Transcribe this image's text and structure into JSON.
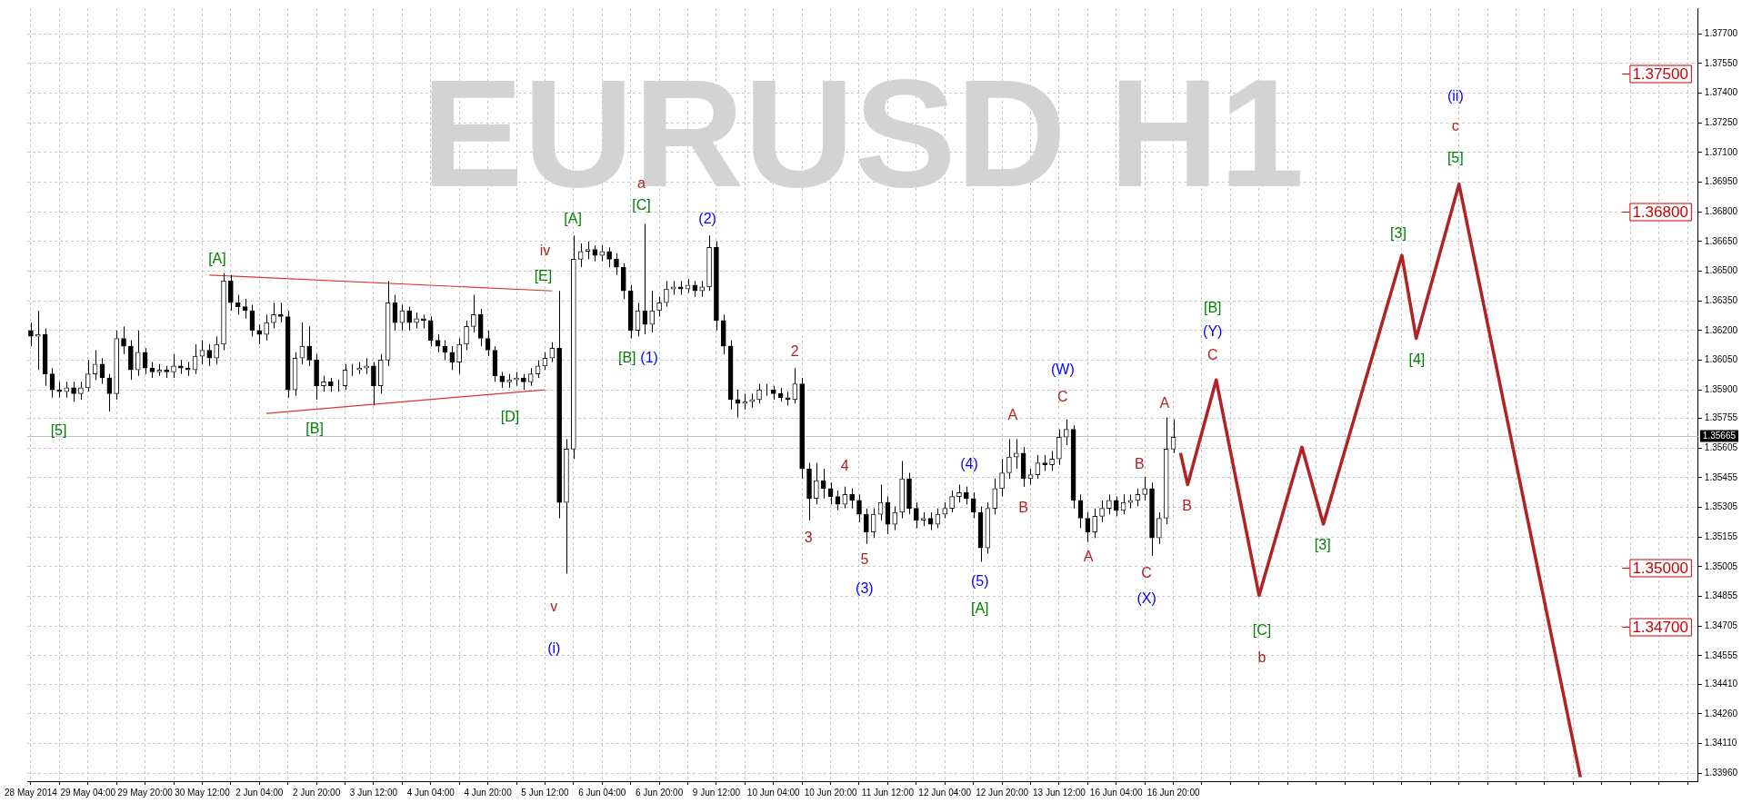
{
  "chart_data": {
    "type": "candlestick",
    "title": "EURUSD H1",
    "categories": [
      "28 May 2014",
      null,
      null,
      null,
      null,
      null,
      null,
      null,
      "29 May 04:00",
      null,
      null,
      null,
      null,
      null,
      null,
      null,
      "29 May 20:00",
      null,
      null,
      null,
      null,
      null,
      null,
      null,
      "30 May 12:00",
      null,
      null,
      null,
      null,
      null,
      null,
      null,
      "2 Jun 04:00",
      null,
      null,
      null,
      null,
      null,
      null,
      null,
      "2 Jun 20:00",
      null,
      null,
      null,
      null,
      null,
      null,
      null,
      "3 Jun 12:00",
      null,
      null,
      null,
      null,
      null,
      null,
      null,
      "4 Jun 04:00",
      null,
      null,
      null,
      null,
      null,
      null,
      null,
      "4 Jun 20:00",
      null,
      null,
      null,
      null,
      null,
      null,
      null,
      "5 Jun 12:00",
      null,
      null,
      null,
      null,
      null,
      null,
      null,
      "6 Jun 04:00",
      null,
      null,
      null,
      null,
      null,
      null,
      null,
      "6 Jun 20:00",
      null,
      null,
      null,
      null,
      null,
      null,
      null,
      "9 Jun 12:00",
      null,
      null,
      null,
      null,
      null,
      null,
      null,
      "10 Jun 04:00",
      null,
      null,
      null,
      null,
      null,
      null,
      null,
      "10 Jun 20:00",
      null,
      null,
      null,
      null,
      null,
      null,
      null,
      "11 Jun 12:00",
      null,
      null,
      null,
      null,
      null,
      null,
      null,
      "12 Jun 04:00",
      null,
      null,
      null,
      null,
      null,
      null,
      null,
      "12 Jun 20:00",
      null,
      null,
      null,
      null,
      null,
      null,
      null,
      "13 Jun 12:00",
      null,
      null,
      null,
      null,
      null,
      null,
      null,
      "16 Jun 04:00",
      null,
      null,
      null,
      null,
      null,
      null,
      null,
      "16 Jun 20:00",
      null,
      null,
      null,
      null,
      null,
      null,
      null,
      null,
      null,
      null,
      null,
      null,
      null,
      null,
      null,
      null,
      null,
      null,
      null,
      null,
      null,
      null,
      null,
      null,
      null,
      null,
      null,
      null,
      null,
      null,
      null,
      null,
      null,
      null,
      null,
      null,
      null,
      null,
      null,
      null,
      null,
      null,
      null,
      null,
      null,
      null,
      null,
      null,
      null,
      null,
      null,
      null,
      null,
      null,
      null,
      null,
      null,
      null,
      null,
      null,
      null,
      null,
      null,
      null,
      null,
      null,
      null,
      null,
      null,
      null,
      null,
      null,
      null
    ],
    "ohlc": [
      [
        1.362,
        1.3624,
        1.3612,
        1.3617
      ],
      [
        1.3617,
        1.363,
        1.36,
        1.3618
      ],
      [
        1.3618,
        1.3621,
        1.3592,
        1.3598
      ],
      [
        1.3598,
        1.3601,
        1.3586,
        1.359
      ],
      [
        1.359,
        1.3594,
        1.3586,
        1.3589
      ],
      [
        1.3589,
        1.3594,
        1.3586,
        1.3591
      ],
      [
        1.3591,
        1.3594,
        1.3584,
        1.3588
      ],
      [
        1.3588,
        1.3594,
        1.3585,
        1.3591
      ],
      [
        1.3591,
        1.3605,
        1.3589,
        1.3598
      ],
      [
        1.3598,
        1.361,
        1.3595,
        1.3603
      ],
      [
        1.3603,
        1.3606,
        1.3593,
        1.3596
      ],
      [
        1.3596,
        1.3598,
        1.3579,
        1.3588
      ],
      [
        1.3588,
        1.362,
        1.3585,
        1.3616
      ],
      [
        1.3616,
        1.3622,
        1.3608,
        1.3612
      ],
      [
        1.3612,
        1.3615,
        1.3595,
        1.36
      ],
      [
        1.36,
        1.362,
        1.3597,
        1.3609
      ],
      [
        1.3609,
        1.3611,
        1.3598,
        1.3601
      ],
      [
        1.3601,
        1.3604,
        1.3596,
        1.3599
      ],
      [
        1.3599,
        1.3603,
        1.3597,
        1.36
      ],
      [
        1.36,
        1.3602,
        1.3596,
        1.3599
      ],
      [
        1.3599,
        1.3608,
        1.3596,
        1.3602
      ],
      [
        1.3602,
        1.3605,
        1.3598,
        1.3601
      ],
      [
        1.3601,
        1.3604,
        1.3597,
        1.36
      ],
      [
        1.36,
        1.3613,
        1.3598,
        1.3607
      ],
      [
        1.3607,
        1.3615,
        1.3603,
        1.361
      ],
      [
        1.361,
        1.3613,
        1.3602,
        1.3606
      ],
      [
        1.3606,
        1.3617,
        1.3603,
        1.3613
      ],
      [
        1.3613,
        1.3649,
        1.361,
        1.3645
      ],
      [
        1.3645,
        1.3648,
        1.363,
        1.3634
      ],
      [
        1.3634,
        1.3638,
        1.3628,
        1.3632
      ],
      [
        1.3632,
        1.3636,
        1.3626,
        1.363
      ],
      [
        1.363,
        1.3633,
        1.3617,
        1.362
      ],
      [
        1.362,
        1.3623,
        1.3613,
        1.3618
      ],
      [
        1.3618,
        1.3628,
        1.3615,
        1.3624
      ],
      [
        1.3624,
        1.3634,
        1.3621,
        1.3628
      ],
      [
        1.3628,
        1.3634,
        1.3624,
        1.3627
      ],
      [
        1.3627,
        1.363,
        1.3586,
        1.359
      ],
      [
        1.359,
        1.3609,
        1.3587,
        1.3606
      ],
      [
        1.3606,
        1.3624,
        1.3603,
        1.3612
      ],
      [
        1.3612,
        1.3622,
        1.3602,
        1.3605
      ],
      [
        1.3605,
        1.3608,
        1.3585,
        1.3592
      ],
      [
        1.3592,
        1.3597,
        1.3589,
        1.3594
      ],
      [
        1.3594,
        1.3596,
        1.3589,
        1.3592
      ],
      [
        1.3592,
        1.3595,
        1.3589,
        1.3592
      ],
      [
        1.3592,
        1.3603,
        1.359,
        1.36
      ],
      [
        1.36,
        1.3603,
        1.3597,
        1.36
      ],
      [
        1.36,
        1.3604,
        1.3598,
        1.3601
      ],
      [
        1.3601,
        1.3606,
        1.3598,
        1.3602
      ],
      [
        1.3602,
        1.3604,
        1.3582,
        1.3592
      ],
      [
        1.3592,
        1.3608,
        1.3588,
        1.3605
      ],
      [
        1.3605,
        1.3645,
        1.3602,
        1.3634
      ],
      [
        1.3634,
        1.3638,
        1.362,
        1.3624
      ],
      [
        1.3624,
        1.3633,
        1.362,
        1.363
      ],
      [
        1.363,
        1.3632,
        1.362,
        1.3624
      ],
      [
        1.3624,
        1.3629,
        1.3621,
        1.3626
      ],
      [
        1.3626,
        1.3628,
        1.3621,
        1.3625
      ],
      [
        1.3625,
        1.3627,
        1.3612,
        1.3615
      ],
      [
        1.3615,
        1.3618,
        1.3609,
        1.3612
      ],
      [
        1.3612,
        1.3615,
        1.3605,
        1.3609
      ],
      [
        1.3609,
        1.3612,
        1.36,
        1.3604
      ],
      [
        1.3604,
        1.3616,
        1.3598,
        1.3613
      ],
      [
        1.3613,
        1.3625,
        1.361,
        1.3622
      ],
      [
        1.3622,
        1.3638,
        1.3619,
        1.3628
      ],
      [
        1.3628,
        1.3631,
        1.3612,
        1.3616
      ],
      [
        1.3616,
        1.362,
        1.3607,
        1.361
      ],
      [
        1.361,
        1.3612,
        1.3594,
        1.3597
      ],
      [
        1.3597,
        1.3599,
        1.3591,
        1.3594
      ],
      [
        1.3594,
        1.3598,
        1.3591,
        1.3595
      ],
      [
        1.3595,
        1.3599,
        1.3592,
        1.3596
      ],
      [
        1.3596,
        1.3598,
        1.359,
        1.3594
      ],
      [
        1.3594,
        1.3601,
        1.3592,
        1.3598
      ],
      [
        1.3598,
        1.3605,
        1.3596,
        1.3602
      ],
      [
        1.3602,
        1.3609,
        1.36,
        1.3606
      ],
      [
        1.3606,
        1.3614,
        1.3604,
        1.3611
      ],
      [
        1.3611,
        1.364,
        1.3525,
        1.3533
      ],
      [
        1.3533,
        1.3565,
        1.3497,
        1.356
      ],
      [
        1.356,
        1.3668,
        1.3555,
        1.3656
      ],
      [
        1.3656,
        1.3664,
        1.3652,
        1.366
      ],
      [
        1.366,
        1.3665,
        1.3656,
        1.3661
      ],
      [
        1.3661,
        1.3663,
        1.3655,
        1.3658
      ],
      [
        1.3658,
        1.3663,
        1.3655,
        1.366
      ],
      [
        1.366,
        1.3662,
        1.3652,
        1.3656
      ],
      [
        1.3656,
        1.3659,
        1.3648,
        1.3652
      ],
      [
        1.3652,
        1.3654,
        1.3636,
        1.364
      ],
      [
        1.364,
        1.3643,
        1.3616,
        1.362
      ],
      [
        1.362,
        1.3634,
        1.3617,
        1.363
      ],
      [
        1.363,
        1.3674,
        1.3618,
        1.3623
      ],
      [
        1.3623,
        1.364,
        1.3619,
        1.363
      ],
      [
        1.363,
        1.3637,
        1.3627,
        1.3634
      ],
      [
        1.3634,
        1.3645,
        1.3632,
        1.3641
      ],
      [
        1.3641,
        1.3645,
        1.3638,
        1.3642
      ],
      [
        1.3642,
        1.3645,
        1.3638,
        1.3641
      ],
      [
        1.3641,
        1.3646,
        1.3639,
        1.3643
      ],
      [
        1.3643,
        1.3645,
        1.3637,
        1.364
      ],
      [
        1.364,
        1.3645,
        1.3637,
        1.3642
      ],
      [
        1.3642,
        1.3668,
        1.364,
        1.3662
      ],
      [
        1.3662,
        1.3665,
        1.362,
        1.3625
      ],
      [
        1.3625,
        1.3628,
        1.3608,
        1.3612
      ],
      [
        1.3612,
        1.3615,
        1.358,
        1.3585
      ],
      [
        1.3585,
        1.359,
        1.3576,
        1.3583
      ],
      [
        1.3583,
        1.3588,
        1.358,
        1.3584
      ],
      [
        1.3584,
        1.3588,
        1.3581,
        1.3585
      ],
      [
        1.3585,
        1.3593,
        1.3583,
        1.359
      ],
      [
        1.359,
        1.3593,
        1.3587,
        1.359
      ],
      [
        1.359,
        1.3592,
        1.3585,
        1.3588
      ],
      [
        1.3588,
        1.3591,
        1.3584,
        1.3586
      ],
      [
        1.3586,
        1.3589,
        1.3582,
        1.3585
      ],
      [
        1.3585,
        1.3601,
        1.3583,
        1.3593
      ],
      [
        1.3593,
        1.3596,
        1.3545,
        1.355
      ],
      [
        1.355,
        1.3553,
        1.3524,
        1.3535
      ],
      [
        1.3535,
        1.3553,
        1.3532,
        1.3544
      ],
      [
        1.3544,
        1.355,
        1.3535,
        1.354
      ],
      [
        1.354,
        1.3543,
        1.3532,
        1.3536
      ],
      [
        1.3536,
        1.3539,
        1.3529,
        1.3532
      ],
      [
        1.3532,
        1.3541,
        1.353,
        1.3537
      ],
      [
        1.3537,
        1.354,
        1.353,
        1.3534
      ],
      [
        1.3534,
        1.3537,
        1.3523,
        1.3527
      ],
      [
        1.3527,
        1.353,
        1.3512,
        1.3518
      ],
      [
        1.3518,
        1.353,
        1.3515,
        1.3527
      ],
      [
        1.3527,
        1.3542,
        1.3524,
        1.3533
      ],
      [
        1.3533,
        1.3536,
        1.3517,
        1.3522
      ],
      [
        1.3522,
        1.3531,
        1.3519,
        1.3528
      ],
      [
        1.3528,
        1.3554,
        1.3525,
        1.3545
      ],
      [
        1.3545,
        1.3548,
        1.3527,
        1.353
      ],
      [
        1.353,
        1.3533,
        1.352,
        1.3524
      ],
      [
        1.3524,
        1.3528,
        1.3521,
        1.3525
      ],
      [
        1.3525,
        1.3528,
        1.3519,
        1.3522
      ],
      [
        1.3522,
        1.353,
        1.352,
        1.3527
      ],
      [
        1.3527,
        1.3533,
        1.3525,
        1.353
      ],
      [
        1.353,
        1.3539,
        1.3528,
        1.3536
      ],
      [
        1.3536,
        1.3542,
        1.3533,
        1.3538
      ],
      [
        1.3538,
        1.3541,
        1.3532,
        1.3535
      ],
      [
        1.3535,
        1.3538,
        1.3525,
        1.3528
      ],
      [
        1.3528,
        1.3531,
        1.3503,
        1.351
      ],
      [
        1.351,
        1.3533,
        1.3507,
        1.353
      ],
      [
        1.353,
        1.3545,
        1.3527,
        1.354
      ],
      [
        1.354,
        1.3555,
        1.3536,
        1.3548
      ],
      [
        1.3548,
        1.3565,
        1.3545,
        1.3556
      ],
      [
        1.3556,
        1.3565,
        1.355,
        1.3558
      ],
      [
        1.3558,
        1.3561,
        1.3541,
        1.3545
      ],
      [
        1.3545,
        1.355,
        1.3542,
        1.3547
      ],
      [
        1.3547,
        1.3557,
        1.3545,
        1.3553
      ],
      [
        1.3553,
        1.3557,
        1.3549,
        1.3552
      ],
      [
        1.3552,
        1.3559,
        1.3549,
        1.3555
      ],
      [
        1.3555,
        1.357,
        1.3552,
        1.3566
      ],
      [
        1.3566,
        1.3575,
        1.3562,
        1.357
      ],
      [
        1.357,
        1.3572,
        1.353,
        1.3534
      ],
      [
        1.3534,
        1.3537,
        1.352,
        1.3525
      ],
      [
        1.3525,
        1.3528,
        1.3513,
        1.3518
      ],
      [
        1.3518,
        1.353,
        1.3515,
        1.3526
      ],
      [
        1.3526,
        1.3534,
        1.3523,
        1.353
      ],
      [
        1.353,
        1.3537,
        1.3527,
        1.3534
      ],
      [
        1.3534,
        1.3536,
        1.3526,
        1.3529
      ],
      [
        1.3529,
        1.3537,
        1.3527,
        1.3533
      ],
      [
        1.3533,
        1.3537,
        1.353,
        1.3534
      ],
      [
        1.3534,
        1.354,
        1.3531,
        1.3537
      ],
      [
        1.3537,
        1.3546,
        1.3534,
        1.354
      ],
      [
        1.354,
        1.3543,
        1.3506,
        1.3515
      ],
      [
        1.3515,
        1.3528,
        1.3512,
        1.3525
      ],
      [
        1.3525,
        1.3576,
        1.3522,
        1.356
      ],
      [
        1.356,
        1.3575,
        1.3558,
        1.3566
      ],
      null,
      null,
      null,
      null,
      null,
      null,
      null,
      null,
      null,
      null,
      null,
      null,
      null,
      null,
      null,
      null,
      null,
      null,
      null,
      null,
      null,
      null,
      null,
      null,
      null,
      null,
      null,
      null,
      null,
      null,
      null,
      null,
      null,
      null,
      null,
      null,
      null,
      null,
      null,
      null,
      null,
      null,
      null,
      null,
      null,
      null,
      null,
      null,
      null,
      null,
      null,
      null,
      null,
      null,
      null,
      null,
      null,
      null,
      null,
      null,
      null,
      null,
      null,
      null,
      null,
      null,
      null,
      null,
      null,
      null,
      null,
      null,
      null
    ],
    "series": [
      {
        "type": "line",
        "color": "#dc3232",
        "values": [
          null,
          null,
          null,
          null,
          null,
          null,
          null,
          null,
          null,
          null,
          null,
          null,
          null,
          null,
          null,
          null,
          null,
          null,
          null,
          null,
          null,
          null,
          null,
          null,
          null,
          1.3648,
          null,
          null,
          null,
          null,
          null,
          null,
          null,
          null,
          null,
          null,
          null,
          null,
          null,
          null,
          null,
          null,
          null,
          null,
          null,
          null,
          null,
          null,
          null,
          null,
          null,
          null,
          null,
          null,
          null,
          null,
          null,
          null,
          null,
          null,
          null,
          null,
          null,
          null,
          null,
          null,
          null,
          null,
          null,
          null,
          null,
          null,
          null,
          1.364,
          null,
          null,
          null,
          null,
          null,
          null,
          null,
          null,
          null,
          null,
          null,
          null,
          null,
          null,
          null,
          null,
          null,
          null,
          null,
          null,
          null,
          null,
          null,
          null,
          null,
          null,
          null,
          null,
          null,
          null,
          null,
          null,
          null,
          null,
          null,
          null,
          null,
          null,
          null,
          null,
          null,
          null,
          null,
          null,
          null,
          null,
          null,
          null,
          null,
          null,
          null,
          null,
          null,
          null,
          null,
          null,
          null,
          null,
          null,
          null,
          null,
          null,
          null,
          null,
          null,
          null,
          null,
          null,
          null,
          null,
          null,
          null,
          null,
          null,
          null,
          null,
          null,
          null,
          null,
          null,
          null,
          null,
          null,
          null,
          null,
          null,
          null,
          null,
          null,
          null,
          null,
          null,
          null,
          null,
          null,
          null,
          null,
          null,
          null,
          null,
          null,
          null,
          null,
          null,
          null,
          null,
          null,
          null,
          null,
          null,
          null,
          null,
          null,
          null,
          null,
          null,
          null,
          null,
          null,
          null,
          null,
          null,
          null,
          null,
          null,
          null,
          null,
          null,
          null,
          null,
          null,
          null,
          null,
          null,
          null,
          null,
          null,
          null,
          null,
          null,
          null,
          null,
          null,
          null,
          null,
          null,
          null,
          null,
          null,
          null,
          null,
          null,
          null,
          null,
          null,
          null,
          null,
          null,
          null,
          null
        ]
      },
      {
        "type": "line",
        "color": "#dc3232",
        "values": [
          null,
          null,
          null,
          null,
          null,
          null,
          null,
          null,
          null,
          null,
          null,
          null,
          null,
          null,
          null,
          null,
          null,
          null,
          null,
          null,
          null,
          null,
          null,
          null,
          null,
          null,
          null,
          null,
          null,
          null,
          null,
          null,
          null,
          1.3578,
          null,
          null,
          null,
          null,
          null,
          null,
          null,
          null,
          null,
          null,
          null,
          null,
          null,
          null,
          null,
          null,
          null,
          null,
          null,
          null,
          null,
          null,
          null,
          null,
          null,
          null,
          null,
          null,
          null,
          null,
          null,
          null,
          null,
          null,
          null,
          null,
          null,
          null,
          1.359,
          null,
          null,
          null,
          null,
          null,
          null,
          null,
          null,
          null,
          null,
          null,
          null,
          null,
          null,
          null,
          null,
          null,
          null,
          null,
          null,
          null,
          null,
          null,
          null,
          null,
          null,
          null,
          null,
          null,
          null,
          null,
          null,
          null,
          null,
          null,
          null,
          null,
          null,
          null,
          null,
          null,
          null,
          null,
          null,
          null,
          null,
          null,
          null,
          null,
          null,
          null,
          null,
          null,
          null,
          null,
          null,
          null,
          null,
          null,
          null,
          null,
          null,
          null,
          null,
          null,
          null,
          null,
          null,
          null,
          null,
          null,
          null,
          null,
          null,
          null,
          null,
          null,
          null,
          null,
          null,
          null,
          null,
          null,
          null,
          null,
          null,
          null,
          null,
          null,
          null,
          null,
          null,
          null,
          null,
          null,
          null,
          null,
          null,
          null,
          null,
          null,
          null,
          null,
          null,
          null,
          null,
          null,
          null,
          null,
          null,
          null,
          null,
          null,
          null,
          null,
          null,
          null,
          null,
          null,
          null,
          null,
          null,
          null,
          null,
          null,
          null,
          null,
          null,
          null,
          null,
          null,
          null,
          null,
          null,
          null,
          null,
          null,
          null,
          null,
          null,
          null,
          null,
          null,
          null,
          null,
          null,
          null,
          null,
          null,
          null,
          null,
          null,
          null,
          null,
          null,
          null,
          null,
          null,
          null,
          null,
          null
        ]
      },
      {
        "type": "line",
        "color": "#b22222",
        "values": [
          null,
          null,
          null,
          null,
          null,
          null,
          null,
          null,
          null,
          null,
          null,
          null,
          null,
          null,
          null,
          null,
          null,
          null,
          null,
          null,
          null,
          null,
          null,
          null,
          null,
          null,
          null,
          null,
          null,
          null,
          null,
          null,
          null,
          null,
          null,
          null,
          null,
          null,
          null,
          null,
          null,
          null,
          null,
          null,
          null,
          null,
          null,
          null,
          null,
          null,
          null,
          null,
          null,
          null,
          null,
          null,
          null,
          null,
          null,
          null,
          null,
          null,
          null,
          null,
          null,
          null,
          null,
          null,
          null,
          null,
          null,
          null,
          null,
          null,
          null,
          null,
          null,
          null,
          null,
          null,
          null,
          null,
          null,
          null,
          null,
          null,
          null,
          null,
          null,
          null,
          null,
          null,
          null,
          null,
          null,
          null,
          null,
          null,
          null,
          null,
          null,
          null,
          null,
          null,
          null,
          null,
          null,
          null,
          null,
          null,
          null,
          null,
          null,
          null,
          null,
          null,
          null,
          null,
          null,
          null,
          null,
          null,
          null,
          null,
          null,
          null,
          null,
          null,
          null,
          null,
          null,
          null,
          null,
          null,
          null,
          null,
          null,
          null,
          null,
          null,
          null,
          null,
          null,
          null,
          null,
          null,
          null,
          null,
          null,
          null,
          null,
          null,
          null,
          null,
          null,
          null,
          null,
          null,
          null,
          null,
          null,
          1.3558,
          1.3542,
          null,
          null,
          null,
          1.3595,
          null,
          null,
          null,
          null,
          null,
          1.3486,
          null,
          null,
          null,
          null,
          null,
          1.3561,
          null,
          null,
          1.3522,
          null,
          null,
          null,
          null,
          null,
          null,
          null,
          null,
          null,
          null,
          1.3658,
          null,
          1.3616,
          null,
          null,
          null,
          null,
          null,
          1.3694,
          null,
          null,
          null,
          null,
          null,
          null,
          null,
          null,
          null,
          null,
          null,
          null,
          null,
          null,
          null,
          null,
          1.3394,
          null,
          null,
          null,
          null,
          null,
          null,
          null,
          null,
          null,
          null,
          null,
          null,
          null,
          null,
          null,
          null
        ]
      }
    ],
    "ylim": [
      1.3392,
      1.3783
    ],
    "yticks": [
      {
        "value": 1.377,
        "label": "1.37700"
      },
      {
        "value": 1.3755,
        "label": "1.37550"
      },
      {
        "value": 1.374,
        "label": "1.37400"
      },
      {
        "value": 1.3725,
        "label": "1.37250"
      },
      {
        "value": 1.371,
        "label": "1.37100"
      },
      {
        "value": 1.3695,
        "label": "1.36950"
      },
      {
        "value": 1.368,
        "label": "1.36800"
      },
      {
        "value": 1.3665,
        "label": "1.36650"
      },
      {
        "value": 1.365,
        "label": "1.36500"
      },
      {
        "value": 1.3635,
        "label": "1.36350"
      },
      {
        "value": 1.362,
        "label": "1.36200"
      },
      {
        "value": 1.3605,
        "label": "1.36050"
      },
      {
        "value": 1.359,
        "label": "1.35900"
      },
      {
        "value": 1.35755,
        "label": "1.35755"
      },
      {
        "value": 1.35605,
        "label": "1.35605"
      },
      {
        "value": 1.35455,
        "label": "1.35455"
      },
      {
        "value": 1.35305,
        "label": "1.35305"
      },
      {
        "value": 1.35155,
        "label": "1.35155"
      },
      {
        "value": 1.35005,
        "label": "1.35005"
      },
      {
        "value": 1.34855,
        "label": "1.34855"
      },
      {
        "value": 1.34705,
        "label": "1.34705"
      },
      {
        "value": 1.34555,
        "label": "1.34555"
      },
      {
        "value": 1.3441,
        "label": "1.34410"
      },
      {
        "value": 1.3426,
        "label": "1.34260"
      },
      {
        "value": 1.3411,
        "label": "1.34110"
      },
      {
        "value": 1.3396,
        "label": "1.33960"
      }
    ],
    "grid": true,
    "ref_lines": [
      {
        "axis": "y",
        "value": 1.35665,
        "label": "1.35665",
        "color": "#c0c0c0"
      },
      {
        "axis": "y",
        "value": 1.375,
        "label": "1.37500",
        "color": "#cc0000"
      },
      {
        "axis": "y",
        "value": 1.368,
        "label": "1.36800",
        "color": "#cc0000"
      },
      {
        "axis": "y",
        "value": 1.35,
        "label": "1.35000",
        "color": "#cc0000"
      },
      {
        "axis": "y",
        "value": 1.347,
        "label": "1.34700",
        "color": "#cc0000"
      }
    ],
    "annotations": [
      "[5]",
      "[A]",
      "[B]",
      "[D]",
      "[E]",
      "[A]",
      "[C]",
      "[B]",
      "[A]",
      "[B]",
      "[C]",
      "[3]",
      "[3]",
      "[4]",
      "[5]",
      "(i)",
      "(1)",
      "(2)",
      "(3)",
      "(4)",
      "(5)",
      "(W)",
      "(X)",
      "(Y)",
      "(ii)",
      "a",
      "iv",
      "v",
      "2",
      "4",
      "3",
      "5",
      "A",
      "B",
      "C",
      "A",
      "B",
      "C",
      "A",
      "B",
      "C",
      "b",
      "c"
    ]
  }
}
